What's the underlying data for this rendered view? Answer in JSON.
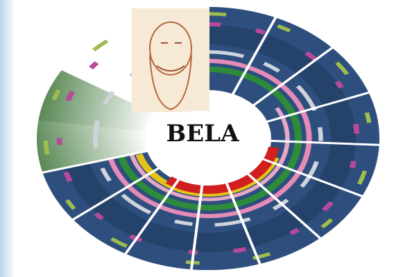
{
  "title": "BELA"
}
